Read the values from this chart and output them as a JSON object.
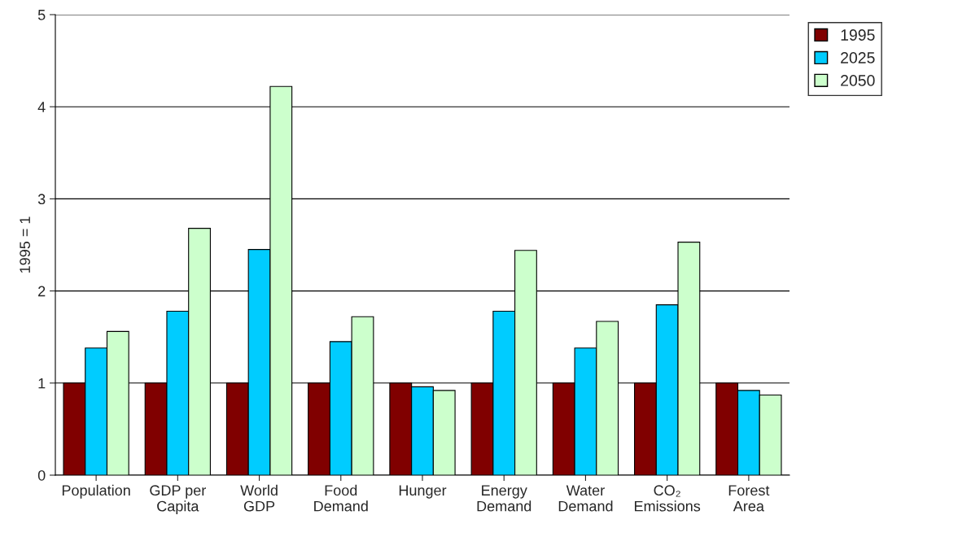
{
  "chart_data": {
    "type": "bar",
    "ylabel": "1995 = 1",
    "categories": [
      "Population",
      "GDP per\nCapita",
      "World\nGDP",
      "Food\nDemand",
      "Hunger",
      "Energy\nDemand",
      "Water\nDemand",
      "CO₂\nEmissions",
      "Forest\nArea"
    ],
    "series": [
      {
        "name": "1995",
        "color": "#800000",
        "values": [
          1,
          1,
          1,
          1,
          1,
          1,
          1,
          1,
          1
        ]
      },
      {
        "name": "2025",
        "color": "#00ccff",
        "values": [
          1.38,
          1.78,
          2.45,
          1.45,
          0.96,
          1.78,
          1.38,
          1.85,
          0.92
        ]
      },
      {
        "name": "2050",
        "color": "#ccffcc",
        "values": [
          1.56,
          2.68,
          4.22,
          1.72,
          0.92,
          2.44,
          1.67,
          2.53,
          0.87
        ]
      }
    ],
    "ylim": [
      0,
      5
    ],
    "yticks": [
      0,
      1,
      2,
      3,
      4,
      5
    ],
    "grid": "y",
    "legend": "top right"
  }
}
